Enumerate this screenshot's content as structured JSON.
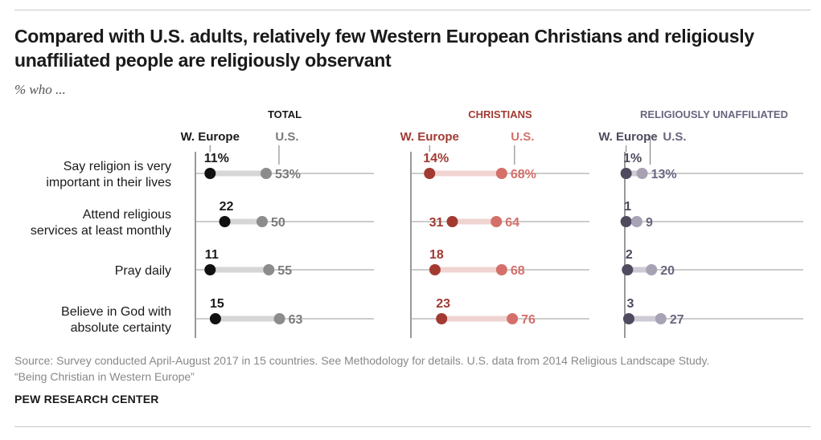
{
  "header": {
    "title": "Compared with U.S. adults, relatively few Western European Christians and religiously unaffiliated people are religiously observant",
    "subtitle": "% who ..."
  },
  "footer": {
    "source_line1": "Source: Survey conducted April-August 2017 in 15 countries. See Methodology for details. U.S. data from 2014 Religious Landscape Study.",
    "source_line2": "“Being Christian in Western Europe”",
    "org": "PEW RESEARCH CENTER"
  },
  "chart_data": {
    "type": "dot-plot",
    "xlim": [
      0,
      100
    ],
    "categories": [
      [
        "Say religion is very",
        "important in their lives"
      ],
      [
        "Attend religious",
        "services at least monthly"
      ],
      [
        "Pray daily"
      ],
      [
        "Believe in God with",
        "absolute certainty"
      ]
    ],
    "panels": [
      {
        "title": "TOTAL",
        "series_labels": [
          "W. Europe",
          "U.S."
        ],
        "colors": {
          "europe": "#111111",
          "us": "#8c8c8c",
          "bar": "#d6d6d6",
          "title": "#1a1a1a",
          "europe_label": "#1a1a1a",
          "us_label": "#7a7a7a"
        },
        "europe": [
          11,
          22,
          11,
          15
        ],
        "us": [
          53,
          50,
          55,
          63
        ],
        "first_row_suffix": "%"
      },
      {
        "title": "CHRISTIANS",
        "series_labels": [
          "W. Europe",
          "U.S."
        ],
        "colors": {
          "europe": "#a23a32",
          "us": "#d4706a",
          "bar": "#f0d4d1",
          "title": "#a23a32",
          "europe_label": "#a23a32",
          "us_label": "#d4706a"
        },
        "europe": [
          14,
          31,
          18,
          23
        ],
        "us": [
          68,
          64,
          68,
          76
        ],
        "first_row_suffix": "%"
      },
      {
        "title": "RELIGIOUSLY UNAFFILIATED",
        "series_labels": [
          "W. Europe",
          "U.S."
        ],
        "colors": {
          "europe": "#4f4a5d",
          "us": "#a8a2b4",
          "bar": "#cfcbd6",
          "title": "#6b6580",
          "europe_label": "#4f4a5d",
          "us_label": "#6b6580"
        },
        "europe": [
          1,
          1,
          2,
          3
        ],
        "us": [
          13,
          9,
          20,
          27
        ],
        "first_row_suffix": "%"
      }
    ]
  }
}
